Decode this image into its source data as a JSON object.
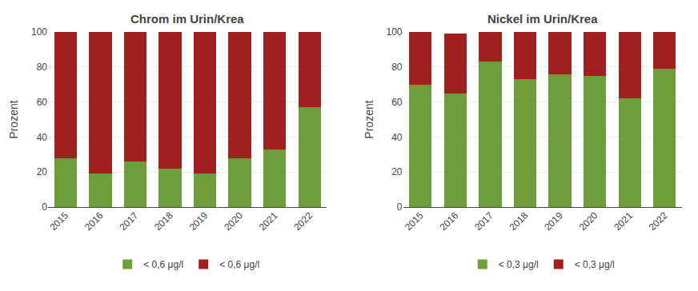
{
  "chart_data": [
    {
      "type": "bar",
      "title": "Chrom im Urin/Krea",
      "categories": [
        "2015",
        "2016",
        "2017",
        "2018",
        "2019",
        "2020",
        "2021",
        "2022"
      ],
      "series": [
        {
          "name": "< 0,6 μg/l",
          "color": "#6d9e3a",
          "values": [
            28,
            19,
            26,
            22,
            19,
            28,
            33,
            57
          ]
        },
        {
          "name": "< 0,6 μg/l",
          "color": "#a02020",
          "values": [
            72,
            81,
            74,
            78,
            81,
            72,
            67,
            43
          ]
        }
      ],
      "ylabel": "Prozent",
      "ylim": [
        0,
        100
      ],
      "yticks": [
        0,
        20,
        40,
        60,
        80,
        100
      ],
      "stacked": true,
      "grid": true,
      "legend": "bottom"
    },
    {
      "type": "bar",
      "title": "Nickel im Urin/Krea",
      "categories": [
        "2015",
        "2016",
        "2017",
        "2018",
        "2019",
        "2020",
        "2021",
        "2022"
      ],
      "series": [
        {
          "name": "< 0,3 μg/l",
          "color": "#6d9e3a",
          "values": [
            70,
            65,
            83,
            73,
            76,
            75,
            62,
            79
          ]
        },
        {
          "name": "< 0,3 μg/l",
          "color": "#a02020",
          "values": [
            30,
            34,
            17,
            27,
            24,
            25,
            38,
            21
          ]
        }
      ],
      "ylabel": "Prozent",
      "ylim": [
        0,
        100
      ],
      "yticks": [
        0,
        20,
        40,
        60,
        80,
        100
      ],
      "stacked": true,
      "grid": true,
      "legend": "bottom"
    }
  ]
}
